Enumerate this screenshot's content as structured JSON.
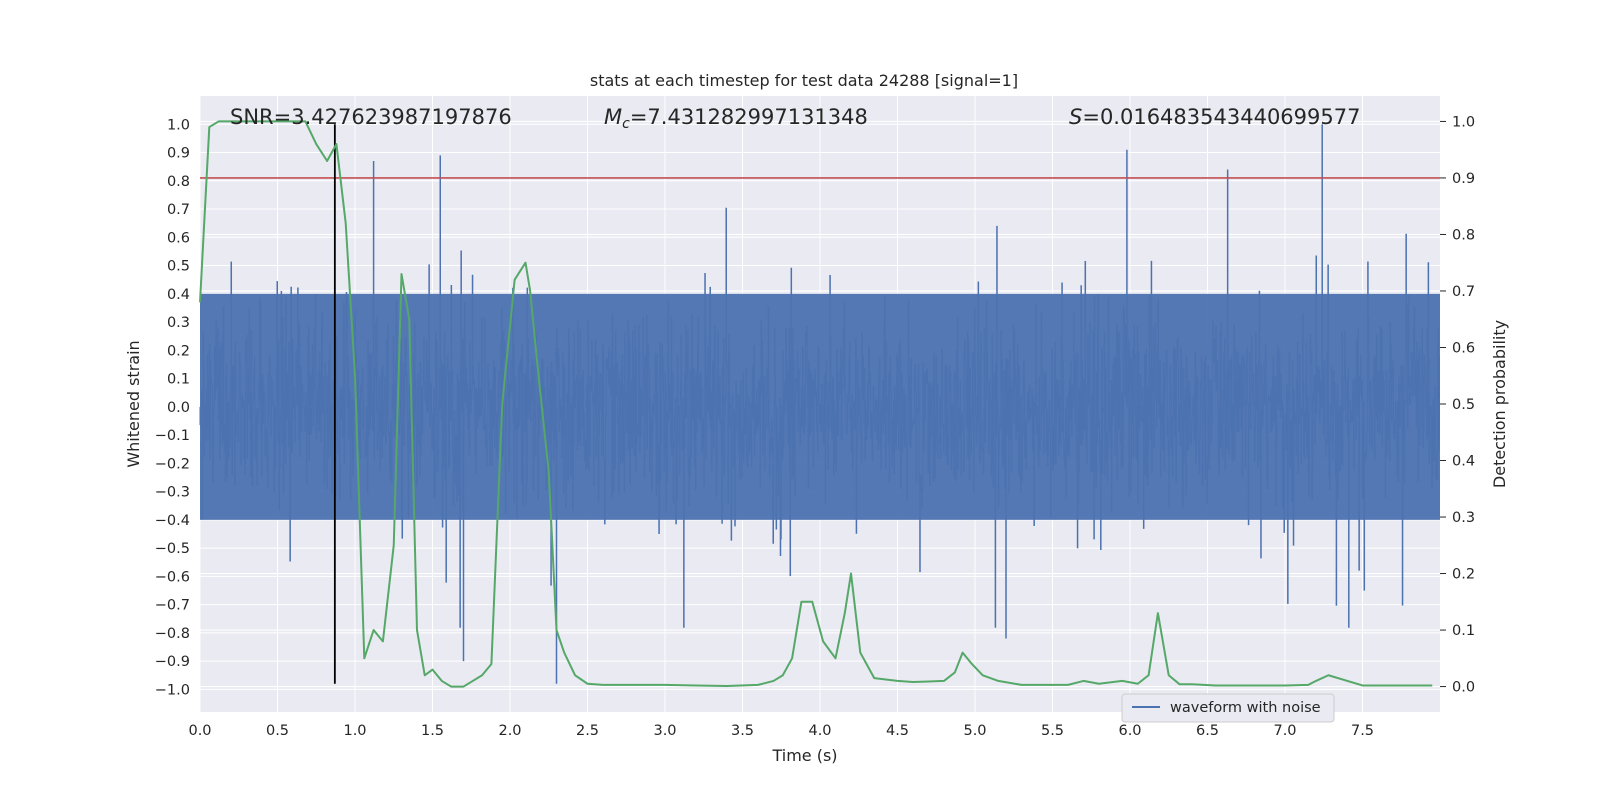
{
  "chart_data": {
    "type": "line",
    "title": "stats at each timestep for test data 24288 [signal=1]",
    "xlabel": "Time (s)",
    "ylabel_left": "Whitened strain",
    "ylabel_right": "Detection probability",
    "xlim": [
      0,
      8
    ],
    "ylim_left": [
      -1.08,
      1.1
    ],
    "ylim_right": [
      -0.045,
      1.045
    ],
    "x_ticks": [
      "0.0",
      "0.5",
      "1.0",
      "1.5",
      "2.0",
      "2.5",
      "3.0",
      "3.5",
      "4.0",
      "4.5",
      "5.0",
      "5.5",
      "6.0",
      "6.5",
      "7.0",
      "7.5"
    ],
    "x_tick_values": [
      0,
      0.5,
      1,
      1.5,
      2,
      2.5,
      3,
      3.5,
      4,
      4.5,
      5,
      5.5,
      6,
      6.5,
      7,
      7.5
    ],
    "y_left_ticks": [
      "1.0",
      "0.9",
      "0.8",
      "0.7",
      "0.6",
      "0.5",
      "0.4",
      "0.3",
      "0.2",
      "0.1",
      "0.0",
      "−0.1",
      "−0.2",
      "−0.3",
      "−0.4",
      "−0.5",
      "−0.6",
      "−0.7",
      "−0.8",
      "−0.9",
      "−1.0"
    ],
    "y_left_tick_values": [
      1.0,
      0.9,
      0.8,
      0.7,
      0.6,
      0.5,
      0.4,
      0.3,
      0.2,
      0.1,
      0.0,
      -0.1,
      -0.2,
      -0.3,
      -0.4,
      -0.5,
      -0.6,
      -0.7,
      -0.8,
      -0.9,
      -1.0
    ],
    "y_right_ticks": [
      "1.0",
      "0.9",
      "0.8",
      "0.7",
      "0.6",
      "0.5",
      "0.4",
      "0.3",
      "0.2",
      "0.1",
      "0.0"
    ],
    "y_right_tick_values": [
      1.0,
      0.9,
      0.8,
      0.7,
      0.6,
      0.5,
      0.4,
      0.3,
      0.2,
      0.1,
      0.0
    ],
    "grid": true,
    "legend_placement": "lower-right",
    "annotations": {
      "snr": "SNR=3.427623987197876",
      "mc_symbol": "M",
      "mc_sub": "c",
      "mc_value": "=7.431282997131348",
      "s_symbol": "S",
      "s_value": "=0.016483543440699577"
    },
    "threshold": {
      "axis": "right",
      "value": 0.9
    },
    "vertical_marker": {
      "x": 0.87,
      "y_from": -0.98,
      "y_to": 1.0
    },
    "series": [
      {
        "name": "waveform with noise",
        "axis": "left",
        "kind": "dense_noise",
        "color": "#4c72b0",
        "approx_envelope": 0.4,
        "peaks": [
          {
            "x": 1.12,
            "y": 0.87
          },
          {
            "x": 1.55,
            "y": 0.89
          },
          {
            "x": 5.98,
            "y": 0.91
          },
          {
            "x": 6.63,
            "y": 0.84
          },
          {
            "x": 7.24,
            "y": 1.0
          },
          {
            "x": 2.3,
            "y": -0.98
          },
          {
            "x": 1.7,
            "y": -0.9
          },
          {
            "x": 5.2,
            "y": -0.82
          }
        ]
      },
      {
        "axis": "right",
        "kind": "line",
        "color": "#55a868",
        "x": [
          0.0,
          0.06,
          0.12,
          0.2,
          0.3,
          0.4,
          0.5,
          0.6,
          0.68,
          0.75,
          0.82,
          0.88,
          0.94,
          1.0,
          1.06,
          1.12,
          1.18,
          1.25,
          1.3,
          1.35,
          1.4,
          1.45,
          1.5,
          1.56,
          1.62,
          1.7,
          1.76,
          1.82,
          1.88,
          1.95,
          2.03,
          2.1,
          2.13,
          2.18,
          2.25,
          2.3,
          2.35,
          2.42,
          2.5,
          2.6,
          2.8,
          3.0,
          3.2,
          3.4,
          3.6,
          3.7,
          3.76,
          3.82,
          3.88,
          3.95,
          4.02,
          4.1,
          4.16,
          4.2,
          4.26,
          4.35,
          4.5,
          4.6,
          4.7,
          4.8,
          4.87,
          4.92,
          4.98,
          5.05,
          5.15,
          5.3,
          5.6,
          5.7,
          5.8,
          5.95,
          6.05,
          6.12,
          6.18,
          6.25,
          6.32,
          6.4,
          6.55,
          7.0,
          7.15,
          7.2,
          7.28,
          7.5,
          7.95
        ],
        "y": [
          0.68,
          0.99,
          1.0,
          1.0,
          1.0,
          1.0,
          1.0,
          1.0,
          1.0,
          0.96,
          0.93,
          0.96,
          0.82,
          0.55,
          0.05,
          0.1,
          0.08,
          0.25,
          0.73,
          0.65,
          0.1,
          0.02,
          0.03,
          0.01,
          0.0,
          0.0,
          0.01,
          0.02,
          0.04,
          0.5,
          0.72,
          0.75,
          0.7,
          0.56,
          0.38,
          0.1,
          0.06,
          0.02,
          0.005,
          0.003,
          0.003,
          0.003,
          0.002,
          0.001,
          0.003,
          0.01,
          0.02,
          0.05,
          0.15,
          0.15,
          0.08,
          0.05,
          0.13,
          0.2,
          0.06,
          0.015,
          0.01,
          0.008,
          0.009,
          0.01,
          0.025,
          0.06,
          0.04,
          0.02,
          0.01,
          0.003,
          0.003,
          0.01,
          0.005,
          0.01,
          0.005,
          0.02,
          0.13,
          0.02,
          0.004,
          0.004,
          0.002,
          0.002,
          0.003,
          0.01,
          0.02,
          0.002,
          0.002
        ]
      }
    ]
  }
}
